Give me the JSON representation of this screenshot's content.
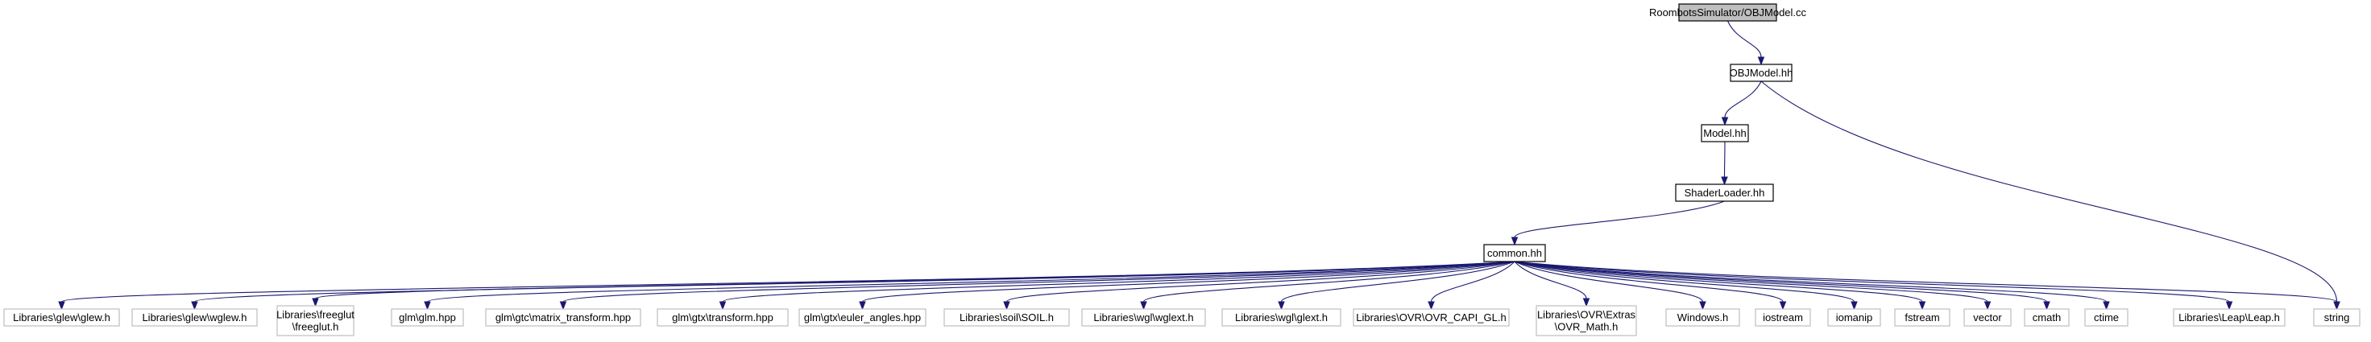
{
  "diagram": {
    "nodes": [
      {
        "id": "root",
        "lines": [
          "RoombotsSimulator/OBJModel.cc"
        ],
        "kind": "root"
      },
      {
        "id": "objmodel",
        "lines": [
          "OBJModel.hh"
        ],
        "kind": "normal"
      },
      {
        "id": "model",
        "lines": [
          "Model.hh"
        ],
        "kind": "normal"
      },
      {
        "id": "shaderloader",
        "lines": [
          "ShaderLoader.hh"
        ],
        "kind": "normal"
      },
      {
        "id": "common",
        "lines": [
          "common.hh"
        ],
        "kind": "normal"
      },
      {
        "id": "glew",
        "lines": [
          "Libraries\\glew\\glew.h"
        ],
        "kind": "leaf"
      },
      {
        "id": "wglew",
        "lines": [
          "Libraries\\glew\\wglew.h"
        ],
        "kind": "leaf"
      },
      {
        "id": "freeglut",
        "lines": [
          "Libraries\\freeglut",
          "\\freeglut.h"
        ],
        "kind": "leaf"
      },
      {
        "id": "glm",
        "lines": [
          "glm\\glm.hpp"
        ],
        "kind": "leaf"
      },
      {
        "id": "matrix_transform",
        "lines": [
          "glm\\gtc\\matrix_transform.hpp"
        ],
        "kind": "leaf"
      },
      {
        "id": "gtx_transform",
        "lines": [
          "glm\\gtx\\transform.hpp"
        ],
        "kind": "leaf"
      },
      {
        "id": "euler_angles",
        "lines": [
          "glm\\gtx\\euler_angles.hpp"
        ],
        "kind": "leaf"
      },
      {
        "id": "soil",
        "lines": [
          "Libraries\\soil\\SOIL.h"
        ],
        "kind": "leaf"
      },
      {
        "id": "wglext",
        "lines": [
          "Libraries\\wgl\\wglext.h"
        ],
        "kind": "leaf"
      },
      {
        "id": "glext",
        "lines": [
          "Libraries\\wgl\\glext.h"
        ],
        "kind": "leaf"
      },
      {
        "id": "ovr_capi",
        "lines": [
          "Libraries\\OVR\\OVR_CAPI_GL.h"
        ],
        "kind": "leaf"
      },
      {
        "id": "ovr_math",
        "lines": [
          "Libraries\\OVR\\Extras",
          "\\OVR_Math.h"
        ],
        "kind": "leaf"
      },
      {
        "id": "windows",
        "lines": [
          "Windows.h"
        ],
        "kind": "leaf"
      },
      {
        "id": "iostream",
        "lines": [
          "iostream"
        ],
        "kind": "leaf"
      },
      {
        "id": "iomanip",
        "lines": [
          "iomanip"
        ],
        "kind": "leaf"
      },
      {
        "id": "fstream",
        "lines": [
          "fstream"
        ],
        "kind": "leaf"
      },
      {
        "id": "vector",
        "lines": [
          "vector"
        ],
        "kind": "leaf"
      },
      {
        "id": "cmath",
        "lines": [
          "cmath"
        ],
        "kind": "leaf"
      },
      {
        "id": "ctime",
        "lines": [
          "ctime"
        ],
        "kind": "leaf"
      },
      {
        "id": "leap",
        "lines": [
          "Libraries\\Leap\\Leap.h"
        ],
        "kind": "leaf"
      },
      {
        "id": "string",
        "lines": [
          "string"
        ],
        "kind": "leaf"
      }
    ],
    "edges": [
      [
        "root",
        "objmodel"
      ],
      [
        "objmodel",
        "model"
      ],
      [
        "objmodel",
        "string"
      ],
      [
        "model",
        "shaderloader"
      ],
      [
        "shaderloader",
        "common"
      ],
      [
        "common",
        "glew"
      ],
      [
        "common",
        "wglew"
      ],
      [
        "common",
        "freeglut"
      ],
      [
        "common",
        "glm"
      ],
      [
        "common",
        "matrix_transform"
      ],
      [
        "common",
        "gtx_transform"
      ],
      [
        "common",
        "euler_angles"
      ],
      [
        "common",
        "soil"
      ],
      [
        "common",
        "wglext"
      ],
      [
        "common",
        "glext"
      ],
      [
        "common",
        "ovr_capi"
      ],
      [
        "common",
        "ovr_math"
      ],
      [
        "common",
        "windows"
      ],
      [
        "common",
        "iostream"
      ],
      [
        "common",
        "iomanip"
      ],
      [
        "common",
        "fstream"
      ],
      [
        "common",
        "vector"
      ],
      [
        "common",
        "cmath"
      ],
      [
        "common",
        "ctime"
      ],
      [
        "common",
        "leap"
      ],
      [
        "common",
        "string"
      ]
    ],
    "colors": {
      "edge": "#191970",
      "root_fill": "#bfbfbf",
      "leaf_border": "#bfbfbf"
    }
  }
}
